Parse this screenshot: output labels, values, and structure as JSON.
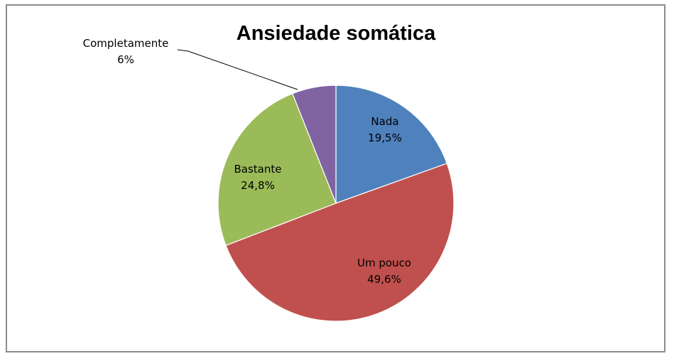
{
  "chart_data": {
    "type": "pie",
    "title": "Ansiedade somática",
    "slices": [
      {
        "label": "Nada",
        "value": 19.5,
        "value_text": "19,5%",
        "color": "#4f81bd"
      },
      {
        "label": "Um pouco",
        "value": 49.6,
        "value_text": "49,6%",
        "color": "#c0504d"
      },
      {
        "label": "Bastante",
        "value": 24.8,
        "value_text": "24,8%",
        "color": "#9bbb59"
      },
      {
        "label": "Completamente",
        "value": 6,
        "value_text": "6%",
        "color": "#8064a2"
      }
    ],
    "start": "12 o'clock",
    "direction": "clockwise",
    "legend": "none"
  }
}
